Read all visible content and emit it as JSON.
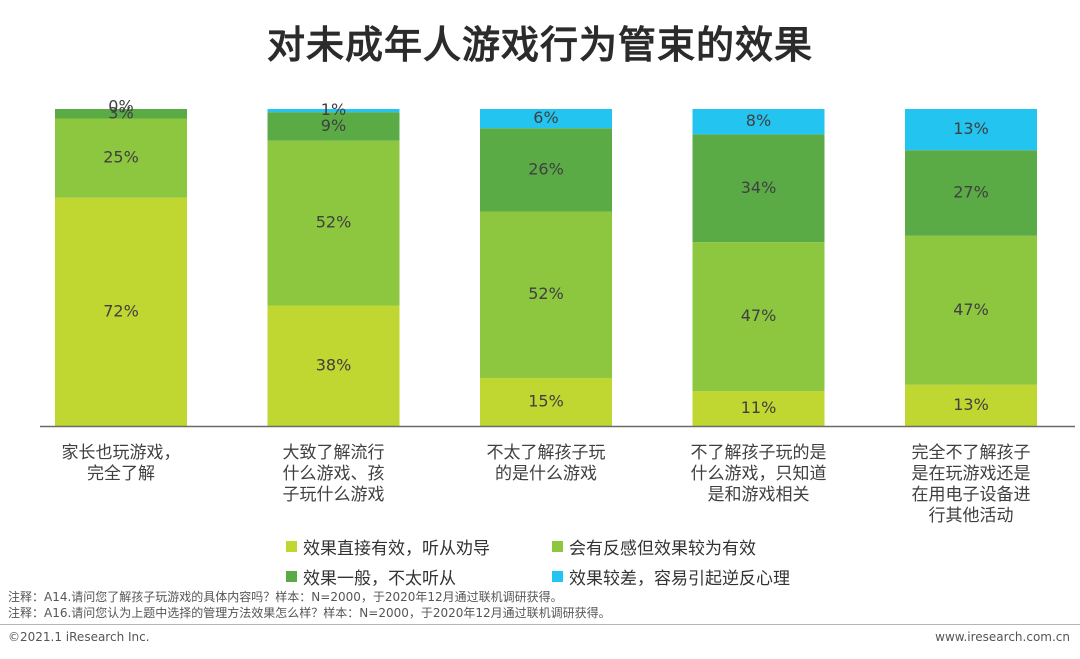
{
  "page": {
    "title": "对未成年人游戏行为管束的效果"
  },
  "chart_data": {
    "type": "bar",
    "stacked": true,
    "stack_mode": "percent",
    "categories": [
      [
        "家长也玩游戏，",
        "完全了解"
      ],
      [
        "大致了解流行",
        "什么游戏、孩",
        "子玩什么游戏"
      ],
      [
        "不太了解孩子玩",
        "的是什么游戏"
      ],
      [
        "不了解孩子玩的是",
        "什么游戏，只知道",
        "是和游戏相关"
      ],
      [
        "完全不了解孩子",
        "是在玩游戏还是",
        "在用电子设备进",
        "行其他活动"
      ]
    ],
    "series": [
      {
        "name": "效果直接有效，听从劝导",
        "color": "#bfd730",
        "values": [
          72,
          38,
          15,
          11,
          13
        ]
      },
      {
        "name": "会有反感但效果较为有效",
        "color": "#8dc63f",
        "values": [
          25,
          52,
          52,
          47,
          47
        ]
      },
      {
        "name": "效果一般，不太听从",
        "color": "#5aab46",
        "values": [
          3,
          9,
          26,
          34,
          27
        ]
      },
      {
        "name": "效果较差，容易引起逆反心理",
        "color": "#23c4ef",
        "values": [
          0,
          1,
          6,
          8,
          13
        ]
      }
    ],
    "value_labels": [
      [
        "72%",
        "25%",
        "3%",
        "0%"
      ],
      [
        "38%",
        "52%",
        "9%",
        "1%"
      ],
      [
        "15%",
        "52%",
        "26%",
        "6%"
      ],
      [
        "11%",
        "47%",
        "34%",
        "8%"
      ],
      [
        "13%",
        "47%",
        "27%",
        "13%"
      ]
    ],
    "ylim": [
      0,
      100
    ],
    "legend_position": "bottom"
  },
  "notes": [
    "注释：A14.请问您了解孩子玩游戏的具体内容吗？样本：N=2000，于2020年12月通过联机调研获得。",
    "注释：A16.请问您认为上题中选择的管理方法效果怎么样？样本：N=2000，于2020年12月通过联机调研获得。"
  ],
  "footer": {
    "left": "©2021.1 iResearch Inc.",
    "right": "www.iresearch.com.cn"
  }
}
